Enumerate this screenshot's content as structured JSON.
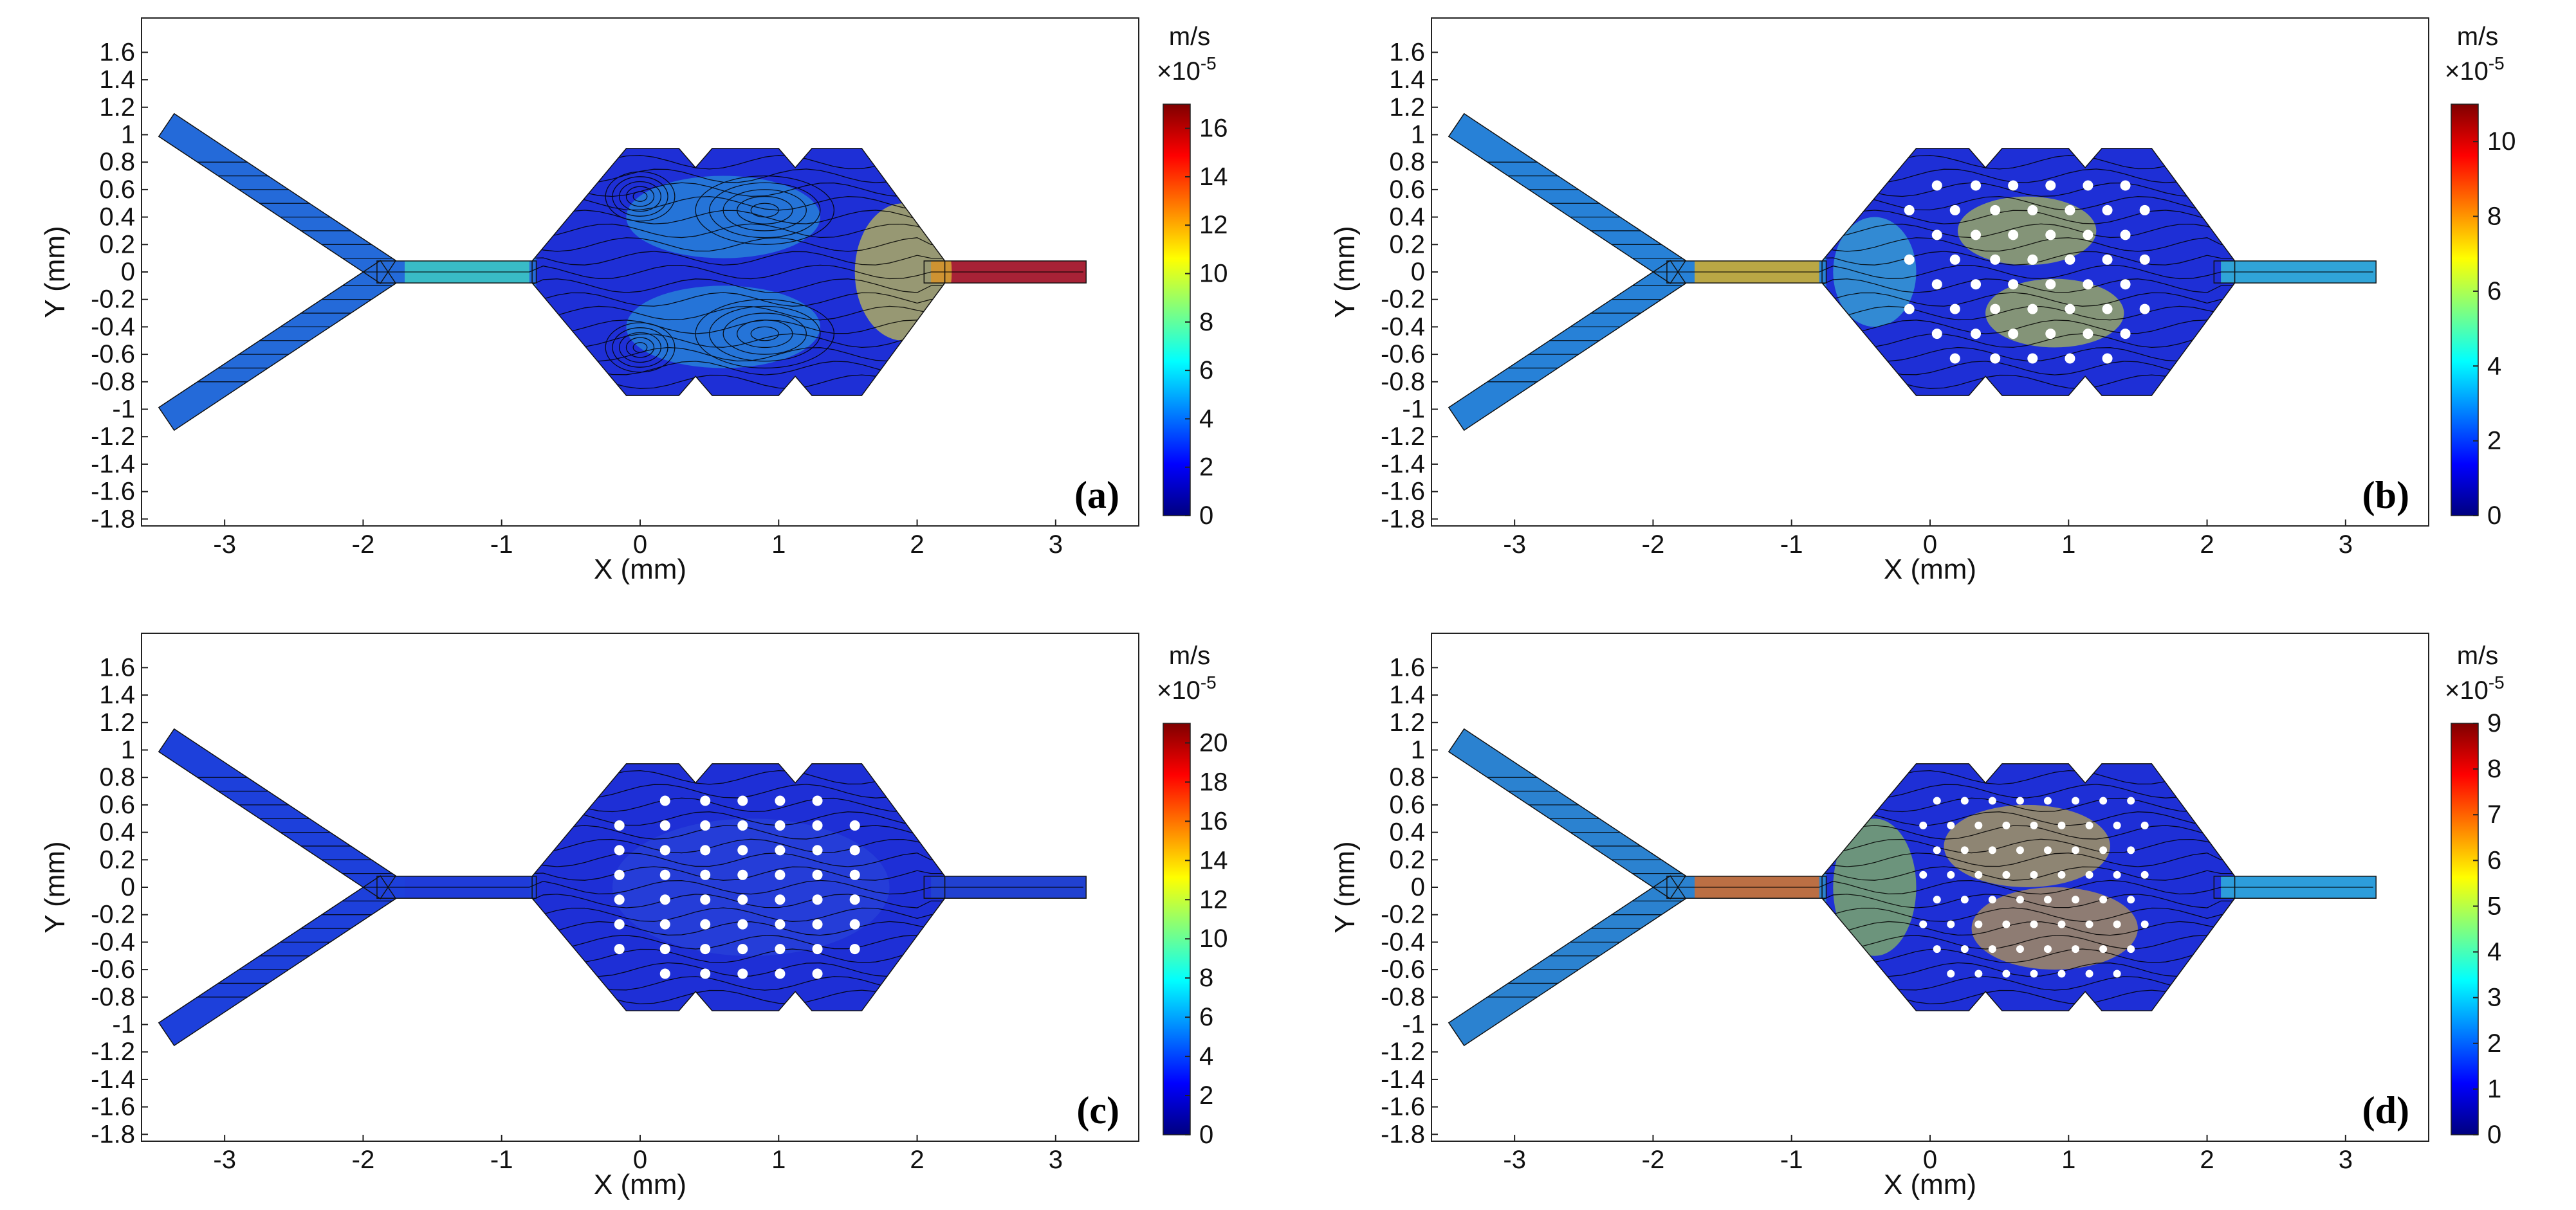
{
  "figure": {
    "x_axis": {
      "label": "X (mm)",
      "range": [
        -3.6,
        3.6
      ],
      "ticks": [
        -3,
        -2,
        -1,
        0,
        1,
        2,
        3
      ],
      "tick_labels": [
        "-3",
        "-2",
        "-1",
        "0",
        "1",
        "2",
        "3"
      ]
    },
    "y_axis": {
      "label": "Y (mm)",
      "range": [
        -1.85,
        1.85
      ],
      "ticks": [
        1.6,
        1.4,
        1.2,
        1,
        0.8,
        0.6,
        0.4,
        0.2,
        0,
        -0.2,
        -0.4,
        -0.6,
        -0.8,
        -1,
        -1.2,
        -1.4,
        -1.6,
        -1.8
      ],
      "tick_labels": [
        "1.6",
        "1.4",
        "1.2",
        "1",
        "0.8",
        "0.6",
        "0.4",
        "0.2",
        "0",
        "-0.2",
        "-0.4",
        "-0.6",
        "-0.8",
        "-1",
        "-1.2",
        "-1.4",
        "-1.6",
        "-1.8"
      ]
    },
    "colorbar_unit": "m/s",
    "colorbar_scale_base": "×10",
    "colorbar_scale_exp": "-5",
    "colormap": [
      "#00007f",
      "#0000ff",
      "#007fff",
      "#00ffff",
      "#7fff7f",
      "#ffff00",
      "#ff7f00",
      "#ff0000",
      "#7f0000"
    ],
    "panels": [
      {
        "label": "(a)",
        "pillars": "none",
        "colorbar_max": 17,
        "colorbar_ticks": [
          16,
          14,
          12,
          10,
          8,
          6,
          4,
          2,
          0
        ],
        "colorbar_tick_labels": [
          "16",
          "14",
          "12",
          "10",
          "8",
          "6",
          "4",
          "2",
          "0"
        ]
      },
      {
        "label": "(b)",
        "pillars": "staggered",
        "colorbar_max": 11,
        "colorbar_ticks": [
          10,
          8,
          6,
          4,
          2,
          0
        ],
        "colorbar_tick_labels": [
          "10",
          "8",
          "6",
          "4",
          "2",
          "0"
        ]
      },
      {
        "label": "(c)",
        "pillars": "aligned",
        "colorbar_max": 21,
        "colorbar_ticks": [
          20,
          18,
          16,
          14,
          12,
          10,
          8,
          6,
          4,
          2,
          0
        ],
        "colorbar_tick_labels": [
          "20",
          "18",
          "16",
          "14",
          "12",
          "10",
          "8",
          "6",
          "4",
          "2",
          "0"
        ]
      },
      {
        "label": "(d)",
        "pillars": "dense",
        "colorbar_max": 9,
        "colorbar_ticks": [
          9,
          8,
          7,
          6,
          5,
          4,
          3,
          2,
          1,
          0
        ],
        "colorbar_tick_labels": [
          "9",
          "8",
          "7",
          "6",
          "5",
          "4",
          "3",
          "2",
          "1",
          "0"
        ]
      }
    ]
  }
}
